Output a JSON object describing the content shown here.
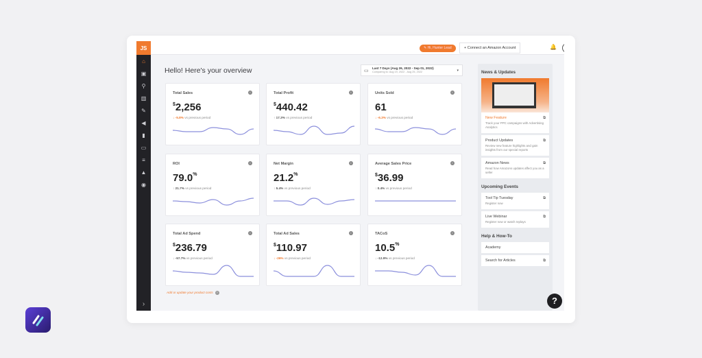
{
  "header": {
    "logo": "JS",
    "pill_label": "Hi, Hunter Lead",
    "connect_label": "Connect an Amazon Account"
  },
  "sidebar": {
    "icons": [
      "home-icon",
      "toolbox-icon",
      "search-icon",
      "warehouse-icon",
      "wrench-icon",
      "megaphone-icon",
      "bar-chart-icon",
      "keyboard-icon",
      "stack-icon",
      "graduation-cap-icon",
      "globe-icon"
    ]
  },
  "main": {
    "title": "Hello! Here's your overview",
    "date_range": {
      "label": "Last 7 Days (Aug 26, 2022 - Sep 01, 2022)",
      "comparing": "Comparing to: Aug 19, 2022 - Aug 25, 2022"
    },
    "cards": [
      {
        "label": "Total Sales",
        "prefix": "$",
        "value": "2,256",
        "unit": "",
        "change": "-5.8%",
        "direction": "down",
        "negative": true,
        "suffix": "vs previous period",
        "spark": [
          5,
          4,
          4,
          7,
          6,
          2,
          6
        ]
      },
      {
        "label": "Total Profit",
        "prefix": "$",
        "value": "440.42",
        "unit": "",
        "change": "17.3%",
        "direction": "up",
        "negative": false,
        "suffix": "vs previous period",
        "spark": [
          5,
          4,
          2,
          8,
          2,
          3,
          8
        ]
      },
      {
        "label": "Units Sold",
        "prefix": "",
        "value": "61",
        "unit": "",
        "change": "-6.3%",
        "direction": "down",
        "negative": true,
        "suffix": "vs previous period",
        "spark": [
          6,
          4,
          4,
          7,
          6,
          2,
          6
        ]
      },
      {
        "label": "ROI",
        "prefix": "",
        "value": "79.0",
        "unit": "%",
        "change": "21.7%",
        "direction": "up",
        "negative": false,
        "suffix": "vs previous period",
        "spark": [
          5,
          4.5,
          3.5,
          6,
          2,
          5,
          7
        ]
      },
      {
        "label": "Net Margin",
        "prefix": "",
        "value": "21.2",
        "unit": "%",
        "change": "5.4%",
        "direction": "up",
        "negative": false,
        "suffix": "vs previous period",
        "spark": [
          5,
          5,
          2,
          7,
          2.5,
          5,
          6
        ]
      },
      {
        "label": "Average Sales Price",
        "prefix": "$",
        "value": "36.99",
        "unit": "",
        "change": "0.4%",
        "direction": "up",
        "negative": false,
        "suffix": "vs previous period",
        "spark": [
          5,
          5,
          5,
          5,
          5,
          5,
          5
        ]
      },
      {
        "label": "Total Ad Spend",
        "prefix": "$",
        "value": "236.79",
        "unit": "",
        "change": "-57.7%",
        "direction": "down",
        "negative": false,
        "suffix": "vs previous period",
        "spark": [
          5,
          4,
          3.5,
          2.5,
          9,
          1,
          1
        ]
      },
      {
        "label": "Total Ad Sales",
        "prefix": "$",
        "value": "110.97",
        "unit": "",
        "change": "-26%",
        "direction": "down",
        "negative": true,
        "suffix": "vs previous period",
        "spark": [
          5,
          1,
          1,
          1,
          9,
          1,
          1
        ]
      },
      {
        "label": "TACoS",
        "prefix": "",
        "value": "10.5",
        "unit": "%",
        "change": "-12.9%",
        "direction": "down",
        "negative": false,
        "suffix": "vs previous period",
        "spark": [
          5,
          5,
          4,
          2,
          9,
          1,
          1
        ]
      }
    ],
    "footer_link": "Add or update your product costs"
  },
  "panel": {
    "news_title": "News & Updates",
    "news": [
      {
        "title": "New Feature",
        "desc": "Track your PPC campaigns with Advertising Analytics",
        "highlight": true
      },
      {
        "title": "Product Updates",
        "desc": "Review new feature highlights and gain insights from our special reports",
        "highlight": false
      },
      {
        "title": "Amazon News",
        "desc": "Read how Amazons updates affect you as a seller",
        "highlight": false
      }
    ],
    "events_title": "Upcoming Events",
    "events": [
      {
        "title": "Tool Tip Tuesday",
        "desc": "Register now"
      },
      {
        "title": "Live Webinar",
        "desc": "Register now or watch replays"
      }
    ],
    "help_title": "Help & How-To",
    "help": [
      {
        "title": "Academy"
      },
      {
        "title": "Search for Articles"
      }
    ]
  },
  "help_button": "?",
  "colors": {
    "accent": "#f07a2e",
    "sidebar": "#222226",
    "spark": "#8b8fdc",
    "brand": "#5b3fd6"
  }
}
